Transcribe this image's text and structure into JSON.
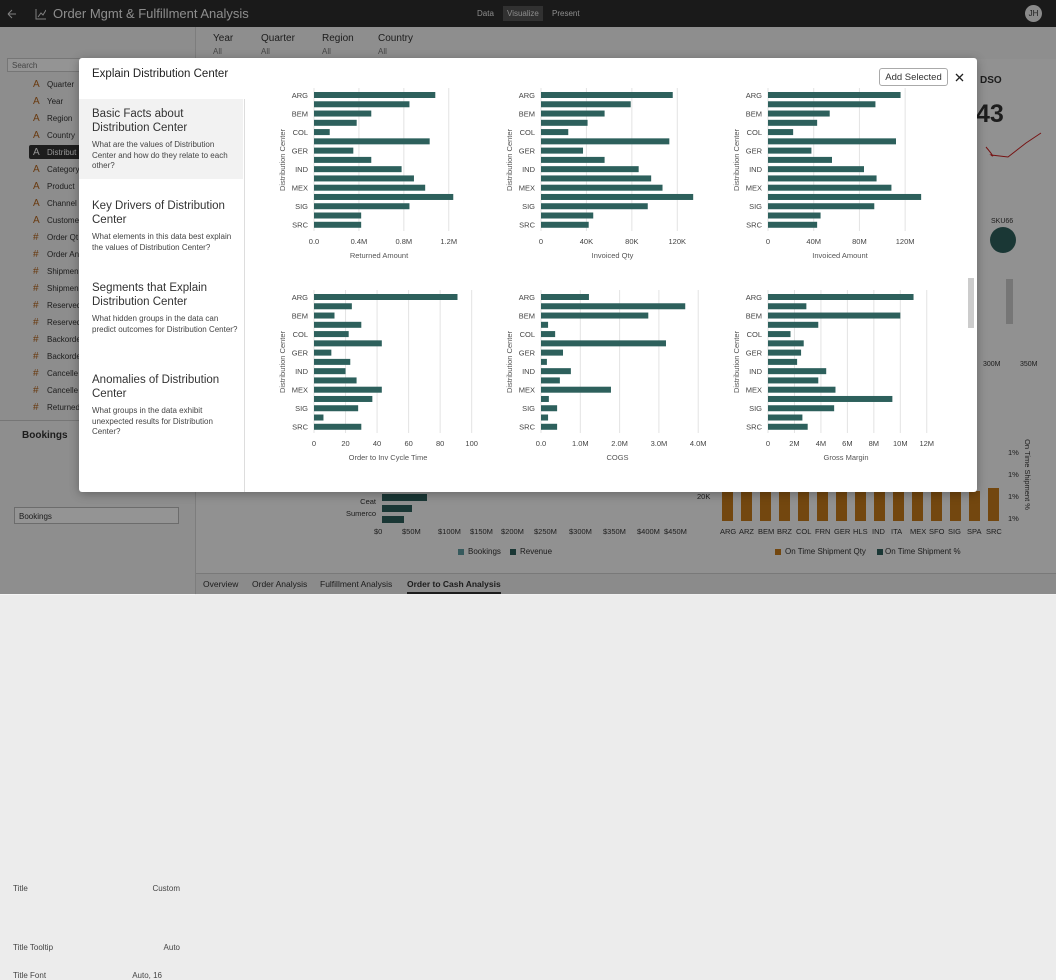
{
  "header": {
    "title": "Order Mgmt & Fulfillment Analysis",
    "tabs": [
      "Data",
      "Visualize",
      "Present"
    ],
    "user": "JH"
  },
  "filters": [
    {
      "label": "Year",
      "value": "All"
    },
    {
      "label": "Quarter",
      "value": "All"
    },
    {
      "label": "Region",
      "value": "All"
    },
    {
      "label": "Country",
      "value": "All"
    }
  ],
  "fields": {
    "search": "Search",
    "items": [
      {
        "icon": "A",
        "label": "Quarter"
      },
      {
        "icon": "A",
        "label": "Year"
      },
      {
        "icon": "A",
        "label": "Region"
      },
      {
        "icon": "A",
        "label": "Country"
      },
      {
        "icon": "A",
        "label": "Distribut"
      },
      {
        "icon": "A",
        "label": "Category"
      },
      {
        "icon": "A",
        "label": "Product"
      },
      {
        "icon": "A",
        "label": "Channel"
      },
      {
        "icon": "A",
        "label": "Custome"
      },
      {
        "icon": "#",
        "label": "Order Qt"
      },
      {
        "icon": "#",
        "label": "Order An"
      },
      {
        "icon": "#",
        "label": "Shipmen"
      },
      {
        "icon": "#",
        "label": "Shipmen"
      },
      {
        "icon": "#",
        "label": "Reserved"
      },
      {
        "icon": "#",
        "label": "Reserved"
      },
      {
        "icon": "#",
        "label": "Backorde"
      },
      {
        "icon": "#",
        "label": "Backorde"
      },
      {
        "icon": "#",
        "label": "Cancelle"
      },
      {
        "icon": "#",
        "label": "Cancelle"
      },
      {
        "icon": "#",
        "label": "Returned"
      }
    ]
  },
  "properties": {
    "title": "Bookings",
    "rows": [
      {
        "label": "Title",
        "value": "Custom"
      },
      {
        "label": "Title Tooltip",
        "value": "Auto"
      },
      {
        "label": "Title Font",
        "value": "Auto, 16"
      }
    ],
    "title_input": "Bookings"
  },
  "background": {
    "kpi_title": "DSO",
    "kpi_value": "43",
    "bubble_label": "SKU66",
    "axis_labels_right": [
      "300M",
      "350M"
    ],
    "bar_labels": [
      "Ceat",
      "Sumerco"
    ],
    "bookings_axis": [
      "$0",
      "$50M",
      "$100M",
      "$150M",
      "$200M",
      "$250M",
      "$300M",
      "$350M",
      "$400M",
      "$450M"
    ],
    "bookings_legend": [
      "Bookings",
      "Revenue"
    ],
    "shipment_axis_left": "20K",
    "shipment_axis_right": [
      "1%",
      "1%",
      "1%",
      "1%"
    ],
    "shipment_axis_title": "On Time Shipment %",
    "shipment_categories": [
      "ARG",
      "ARZ",
      "BEM",
      "BRZ",
      "COL",
      "FRN",
      "GER",
      "HLS",
      "IND",
      "ITA",
      "MEX",
      "SFO",
      "SIG",
      "SPA",
      "SRC"
    ],
    "shipment_legend": [
      "On Time Shipment Qty",
      "On Time Shipment %"
    ]
  },
  "dialog": {
    "title": "Explain Distribution Center",
    "add_button": "Add Selected",
    "sections": [
      {
        "title": "Basic Facts about Distribution Center",
        "description": "What are the values of Distribution Center and how do they relate to each other?"
      },
      {
        "title": "Key Drivers of Distribution Center",
        "description": "What elements in this data best explain the values of Distribution Center?"
      },
      {
        "title": "Segments that Explain Distribution Center",
        "description": "What hidden groups in the data can predict outcomes for Distribution Center?"
      },
      {
        "title": "Anomalies of Distribution Center",
        "description": "What groups in the data exhibit unexpected results for Distribution Center?"
      }
    ]
  },
  "chart_data": [
    {
      "type": "bar",
      "orientation": "horizontal",
      "x_label": "Returned Amount",
      "y_label": "Distribution Center",
      "categories": [
        "ARG",
        null,
        "BEM",
        null,
        "COL",
        null,
        "GER",
        null,
        "IND",
        null,
        "MEX",
        null,
        "SIG",
        null,
        "SRC"
      ],
      "values": [
        1080000,
        850000,
        510000,
        380000,
        140000,
        1030000,
        350000,
        510000,
        780000,
        890000,
        990000,
        1240000,
        850000,
        420000,
        420000
      ],
      "color": "#2d605c",
      "xlim": [
        0,
        1300000
      ],
      "xticks": [
        {
          "value": 0,
          "label": "0.0"
        },
        {
          "value": 400000,
          "label": "0.4M"
        },
        {
          "value": 800000,
          "label": "0.8M"
        },
        {
          "value": 1200000,
          "label": "1.2M"
        }
      ],
      "grid": true
    },
    {
      "type": "bar",
      "orientation": "horizontal",
      "x_label": "Invoiced Qty",
      "y_label": "Distribution Center",
      "categories": [
        "ARG",
        null,
        "BEM",
        null,
        "COL",
        null,
        "GER",
        null,
        "IND",
        null,
        "MEX",
        null,
        "SIG",
        null,
        "SRC"
      ],
      "values": [
        116000,
        79000,
        56000,
        41000,
        24000,
        113000,
        37000,
        56000,
        86000,
        97000,
        107000,
        134000,
        94000,
        46000,
        42000
      ],
      "color": "#2d605c",
      "xlim": [
        0,
        140000
      ],
      "xticks": [
        0,
        {
          "value": 40000,
          "label": "40K"
        },
        {
          "value": 80000,
          "label": "80K"
        },
        {
          "value": 120000,
          "label": "120K"
        }
      ],
      "grid": true
    },
    {
      "type": "bar",
      "orientation": "horizontal",
      "x_label": "Invoiced Amount",
      "y_label": "Distribution Center",
      "categories": [
        "ARG",
        null,
        "BEM",
        null,
        "COL",
        null,
        "GER",
        null,
        "IND",
        null,
        "MEX",
        null,
        "SIG",
        null,
        "SRC"
      ],
      "values": [
        116000000,
        94000000,
        54000000,
        43000000,
        22000000,
        112000000,
        38000000,
        56000000,
        84000000,
        95000000,
        108000000,
        134000000,
        93000000,
        46000000,
        43000000
      ],
      "color": "#2d605c",
      "xlim": [
        0,
        140000000
      ],
      "xticks": [
        0,
        {
          "value": 40000000,
          "label": "40M"
        },
        {
          "value": 80000000,
          "label": "80M"
        },
        {
          "value": 120000000,
          "label": "120M"
        }
      ],
      "grid": true
    },
    {
      "type": "bar",
      "orientation": "horizontal",
      "x_label": "Order to Inv Cycle Time",
      "y_label": "Distribution Center",
      "categories": [
        "ARG",
        null,
        "BEM",
        null,
        "COL",
        null,
        "GER",
        null,
        "IND",
        null,
        "MEX",
        null,
        "SIG",
        null,
        "SRC"
      ],
      "values": [
        91,
        24,
        13,
        30,
        22,
        43,
        11,
        23,
        20,
        27,
        43,
        37,
        28,
        6,
        30
      ],
      "color": "#2d605c",
      "xlim": [
        0,
        104
      ],
      "xticks": [
        0,
        20,
        40,
        60,
        80,
        100
      ],
      "grid": true
    },
    {
      "type": "bar",
      "orientation": "horizontal",
      "x_label": "COGS",
      "y_label": "Distribution Center",
      "categories": [
        "ARG",
        null,
        "BEM",
        null,
        "COL",
        null,
        "GER",
        null,
        "IND",
        null,
        "MEX",
        null,
        "SIG",
        null,
        "SRC"
      ],
      "values": [
        1220000,
        3670000,
        2730000,
        180000,
        360000,
        3180000,
        560000,
        150000,
        760000,
        480000,
        1780000,
        200000,
        410000,
        180000,
        410000
      ],
      "color": "#2d605c",
      "xlim": [
        0,
        4300000
      ],
      "xticks": [
        {
          "value": 0,
          "label": "0.0"
        },
        {
          "value": 1000000,
          "label": "1.0M"
        },
        {
          "value": 2000000,
          "label": "2.0M"
        },
        {
          "value": 3000000,
          "label": "3.0M"
        },
        {
          "value": 4000000,
          "label": "4.0M"
        }
      ],
      "grid": true
    },
    {
      "type": "bar",
      "orientation": "horizontal",
      "x_label": "Gross Margin",
      "y_label": "Distribution Center",
      "categories": [
        "ARG",
        null,
        "BEM",
        null,
        "COL",
        null,
        "GER",
        null,
        "IND",
        null,
        "MEX",
        null,
        "SIG",
        null,
        "SRC"
      ],
      "values": [
        11000000,
        2900000,
        10000000,
        3800000,
        1700000,
        2700000,
        2500000,
        2200000,
        4400000,
        3800000,
        5100000,
        9400000,
        5000000,
        2600000,
        3000000
      ],
      "color": "#2d605c",
      "xlim": [
        0,
        13000000
      ],
      "xticks": [
        0,
        {
          "value": 2000000,
          "label": "2M"
        },
        {
          "value": 4000000,
          "label": "4M"
        },
        {
          "value": 6000000,
          "label": "6M"
        },
        {
          "value": 8000000,
          "label": "8M"
        },
        {
          "value": 10000000,
          "label": "10M"
        },
        {
          "value": 12000000,
          "label": "12M"
        }
      ],
      "grid": true
    }
  ],
  "sheet_tabs": [
    "Overview",
    "Order Analysis",
    "Fulfillment Analysis",
    "Order to Cash Analysis"
  ]
}
